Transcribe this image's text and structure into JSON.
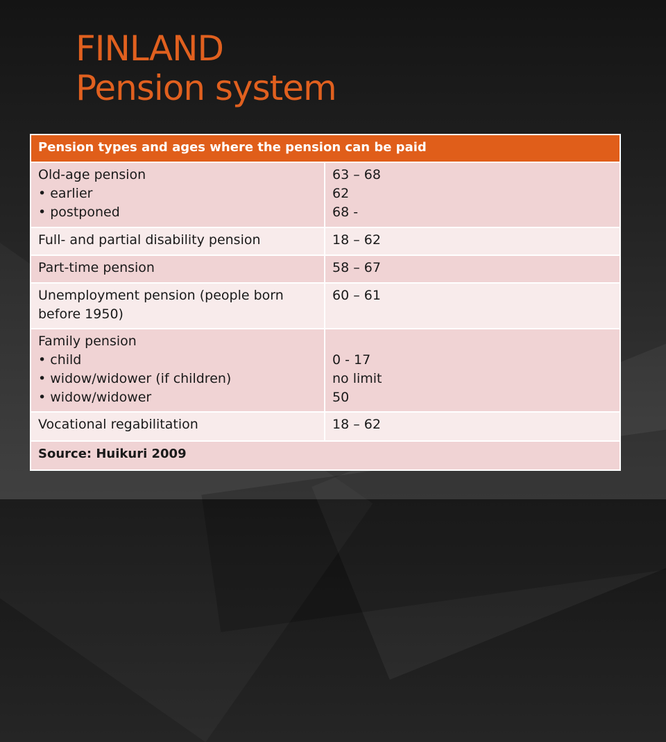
{
  "title": {
    "line1": "FINLAND",
    "line2": "Pension system"
  },
  "table": {
    "header": "Pension types and ages where the pension can be paid",
    "rows": [
      {
        "type_lines": [
          "Old-age pension",
          "• earlier",
          "• postponed"
        ],
        "age_lines": [
          "63 – 68",
          "62",
          "68 -"
        ]
      },
      {
        "type_lines": [
          "Full- and partial disability pension"
        ],
        "age_lines": [
          "18 – 62"
        ]
      },
      {
        "type_lines": [
          "Part-time pension"
        ],
        "age_lines": [
          "58 – 67"
        ]
      },
      {
        "type_lines": [
          "Unemployment pension (people born before 1950)"
        ],
        "age_lines": [
          "60 – 61"
        ]
      },
      {
        "type_lines": [
          "Family pension",
          "• child",
          "• widow/widower (if children)",
          "• widow/widower"
        ],
        "age_lines": [
          "0 - 17",
          "no limit",
          "50"
        ]
      },
      {
        "type_lines": [
          "Vocational regabilitation"
        ],
        "age_lines": [
          "18 – 62"
        ]
      }
    ],
    "source": "Source: Huikuri 2009"
  },
  "colors": {
    "title": "#e0601f",
    "header_bg": "#e05e1a",
    "row_dark": "#f0d3d4",
    "row_light": "#f8ebeb"
  }
}
